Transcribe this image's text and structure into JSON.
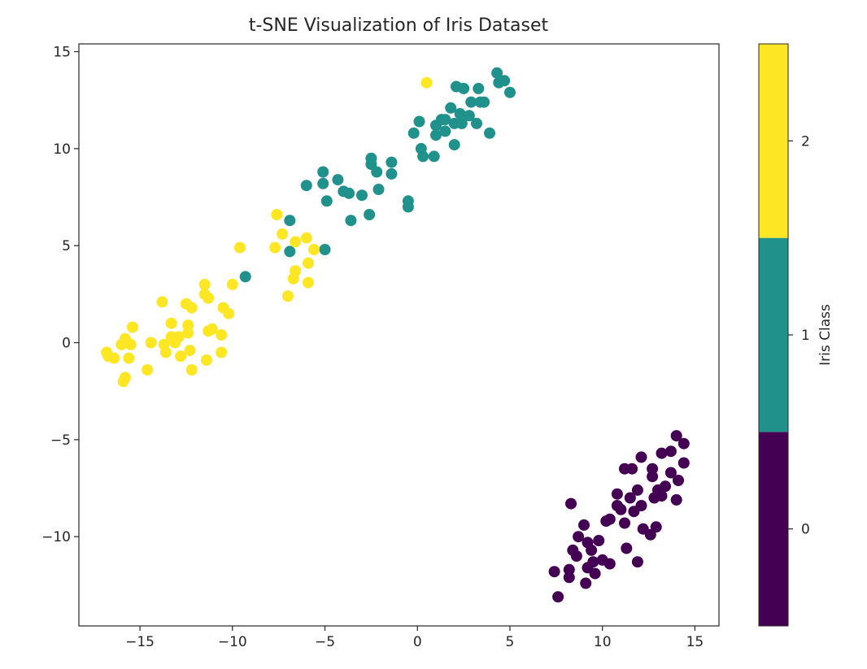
{
  "chart_data": {
    "type": "scatter",
    "title": "t-SNE Visualization of Iris Dataset",
    "xlabel": "",
    "ylabel": "",
    "xlim": [
      -18.3,
      16.3
    ],
    "ylim": [
      -14.6,
      15.4
    ],
    "xticks": [
      -15,
      -10,
      -5,
      0,
      5,
      10,
      15
    ],
    "xtick_labels": [
      "−15",
      "−10",
      "−5",
      "0",
      "5",
      "10",
      "15"
    ],
    "yticks": [
      15,
      10,
      5,
      0,
      -5,
      -10
    ],
    "ytick_labels": [
      "15",
      "10",
      "5",
      "0",
      "−5",
      "−10"
    ],
    "grid": false,
    "colormap": "viridis",
    "class_colors": {
      "0": "#440154",
      "1": "#21918c",
      "2": "#fde725"
    },
    "colorbar": {
      "label": "Iris Class",
      "ticks": [
        0,
        1,
        2
      ],
      "tick_labels": [
        "0",
        "1",
        "2"
      ]
    },
    "series": [
      {
        "class": 0,
        "points": [
          [
            7.6,
            -13.1
          ],
          [
            7.4,
            -11.8
          ],
          [
            8.2,
            -12.1
          ],
          [
            8.2,
            -11.7
          ],
          [
            9.1,
            -12.4
          ],
          [
            8.6,
            -11.0
          ],
          [
            8.4,
            -10.7
          ],
          [
            8.7,
            -10.0
          ],
          [
            9.0,
            -9.4
          ],
          [
            9.2,
            -10.3
          ],
          [
            9.2,
            -11.6
          ],
          [
            9.4,
            -10.7
          ],
          [
            9.5,
            -11.3
          ],
          [
            9.6,
            -11.9
          ],
          [
            9.8,
            -10.2
          ],
          [
            10.0,
            -11.2
          ],
          [
            10.4,
            -11.4
          ],
          [
            10.2,
            -9.2
          ],
          [
            10.4,
            -9.1
          ],
          [
            8.3,
            -8.3
          ],
          [
            10.8,
            -8.4
          ],
          [
            10.8,
            -7.8
          ],
          [
            11.0,
            -8.6
          ],
          [
            11.2,
            -9.3
          ],
          [
            11.3,
            -10.6
          ],
          [
            11.5,
            -8.0
          ],
          [
            11.7,
            -8.7
          ],
          [
            11.9,
            -7.6
          ],
          [
            11.9,
            -11.3
          ],
          [
            12.1,
            -8.4
          ],
          [
            12.2,
            -9.6
          ],
          [
            12.6,
            -9.9
          ],
          [
            12.9,
            -9.5
          ],
          [
            12.8,
            -8.0
          ],
          [
            13.0,
            -7.6
          ],
          [
            13.2,
            -7.9
          ],
          [
            13.4,
            -7.4
          ],
          [
            13.7,
            -6.7
          ],
          [
            14.0,
            -8.1
          ],
          [
            14.1,
            -7.1
          ],
          [
            14.4,
            -6.2
          ],
          [
            13.7,
            -5.6
          ],
          [
            14.0,
            -4.8
          ],
          [
            14.4,
            -5.2
          ],
          [
            13.2,
            -5.7
          ],
          [
            12.7,
            -6.5
          ],
          [
            12.7,
            -6.9
          ],
          [
            12.1,
            -5.9
          ],
          [
            11.6,
            -6.5
          ],
          [
            11.2,
            -6.5
          ]
        ]
      },
      {
        "class": 1,
        "points": [
          [
            -9.3,
            3.4
          ],
          [
            -5.0,
            4.8
          ],
          [
            -6.9,
            4.7
          ],
          [
            -6.9,
            6.3
          ],
          [
            -3.6,
            6.3
          ],
          [
            -2.6,
            6.6
          ],
          [
            -6.0,
            8.1
          ],
          [
            -5.1,
            8.2
          ],
          [
            -5.1,
            8.8
          ],
          [
            -4.9,
            7.3
          ],
          [
            -4.3,
            8.4
          ],
          [
            -4.0,
            7.8
          ],
          [
            -3.7,
            7.7
          ],
          [
            -3.0,
            7.6
          ],
          [
            -2.5,
            9.2
          ],
          [
            -2.5,
            9.5
          ],
          [
            -2.2,
            8.8
          ],
          [
            -2.1,
            7.9
          ],
          [
            -1.4,
            9.3
          ],
          [
            -1.4,
            8.7
          ],
          [
            -0.5,
            7.3
          ],
          [
            -0.5,
            7.0
          ],
          [
            -0.2,
            10.8
          ],
          [
            0.1,
            11.4
          ],
          [
            0.2,
            10.0
          ],
          [
            0.3,
            9.6
          ],
          [
            0.9,
            9.6
          ],
          [
            1.0,
            11.2
          ],
          [
            1.0,
            10.7
          ],
          [
            1.3,
            11.5
          ],
          [
            1.5,
            11.5
          ],
          [
            1.5,
            10.9
          ],
          [
            1.8,
            12.1
          ],
          [
            2.0,
            11.3
          ],
          [
            2.0,
            10.2
          ],
          [
            2.1,
            13.2
          ],
          [
            2.3,
            11.8
          ],
          [
            2.4,
            11.3
          ],
          [
            2.5,
            13.1
          ],
          [
            2.8,
            11.7
          ],
          [
            2.9,
            12.4
          ],
          [
            3.2,
            11.3
          ],
          [
            3.3,
            13.1
          ],
          [
            3.4,
            12.4
          ],
          [
            3.6,
            12.4
          ],
          [
            3.9,
            10.8
          ],
          [
            4.3,
            13.9
          ],
          [
            4.4,
            13.4
          ],
          [
            4.7,
            13.5
          ],
          [
            5.0,
            12.9
          ]
        ]
      },
      {
        "class": 2,
        "points": [
          [
            0.5,
            13.4
          ],
          [
            -7.6,
            6.6
          ],
          [
            -7.3,
            5.6
          ],
          [
            -6.6,
            5.2
          ],
          [
            -6.0,
            5.4
          ],
          [
            -5.6,
            4.8
          ],
          [
            -7.7,
            4.9
          ],
          [
            -6.6,
            3.7
          ],
          [
            -6.7,
            3.3
          ],
          [
            -5.9,
            4.1
          ],
          [
            -5.9,
            3.1
          ],
          [
            -7.0,
            2.4
          ],
          [
            -9.6,
            4.9
          ],
          [
            -10.0,
            3.0
          ],
          [
            -10.5,
            1.8
          ],
          [
            -10.2,
            1.5
          ],
          [
            -11.5,
            3.0
          ],
          [
            -11.5,
            2.5
          ],
          [
            -11.3,
            2.3
          ],
          [
            -12.5,
            2.0
          ],
          [
            -12.2,
            1.8
          ],
          [
            -13.8,
            2.1
          ],
          [
            -13.3,
            1.0
          ],
          [
            -12.4,
            0.9
          ],
          [
            -12.4,
            0.5
          ],
          [
            -11.3,
            0.6
          ],
          [
            -10.6,
            0.4
          ],
          [
            -12.9,
            0.3
          ],
          [
            -13.3,
            0.3
          ],
          [
            -13.1,
            0.0
          ],
          [
            -13.7,
            -0.1
          ],
          [
            -14.4,
            0.0
          ],
          [
            -14.6,
            -1.4
          ],
          [
            -15.5,
            -0.1
          ],
          [
            -15.4,
            0.8
          ],
          [
            -15.8,
            0.2
          ],
          [
            -16.0,
            -0.1
          ],
          [
            -16.4,
            -0.8
          ],
          [
            -16.7,
            -0.7
          ],
          [
            -16.8,
            -0.5
          ],
          [
            -15.6,
            -0.8
          ],
          [
            -15.8,
            -1.8
          ],
          [
            -15.9,
            -2.0
          ],
          [
            -13.6,
            -0.5
          ],
          [
            -12.8,
            -0.7
          ],
          [
            -12.3,
            -0.4
          ],
          [
            -12.2,
            -1.4
          ],
          [
            -11.4,
            -0.9
          ],
          [
            -10.6,
            -0.5
          ],
          [
            -11.1,
            0.7
          ]
        ]
      }
    ]
  }
}
